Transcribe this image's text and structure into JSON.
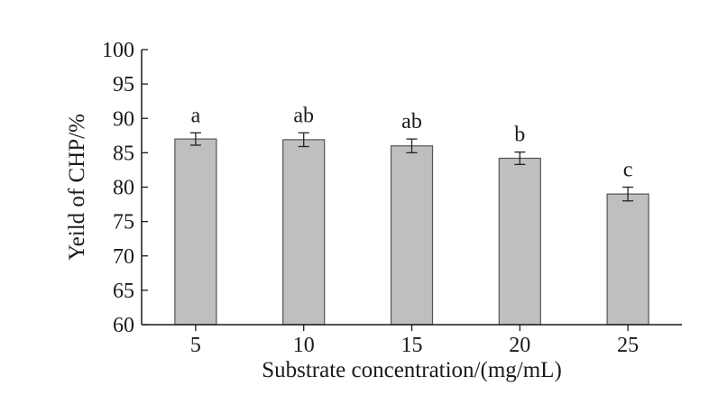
{
  "chart_data": {
    "type": "bar",
    "title": "",
    "xlabel": "Substrate concentration/(mg/mL)",
    "ylabel": "Yeild of CHP/%",
    "categories": [
      "5",
      "10",
      "15",
      "20",
      "25"
    ],
    "values": [
      87.0,
      86.9,
      86.0,
      84.2,
      79.0
    ],
    "errors": [
      0.9,
      1.0,
      1.0,
      0.9,
      1.0
    ],
    "significance": [
      "a",
      "ab",
      "ab",
      "b",
      "c"
    ],
    "ylim": [
      60,
      100
    ],
    "yticks": [
      60,
      65,
      70,
      75,
      80,
      85,
      90,
      95,
      100
    ],
    "grid": false,
    "legend": "none",
    "bar_color": "#bfbfbf",
    "bar_edge_color": "#555555",
    "axis_color": "#1a1a1a"
  }
}
